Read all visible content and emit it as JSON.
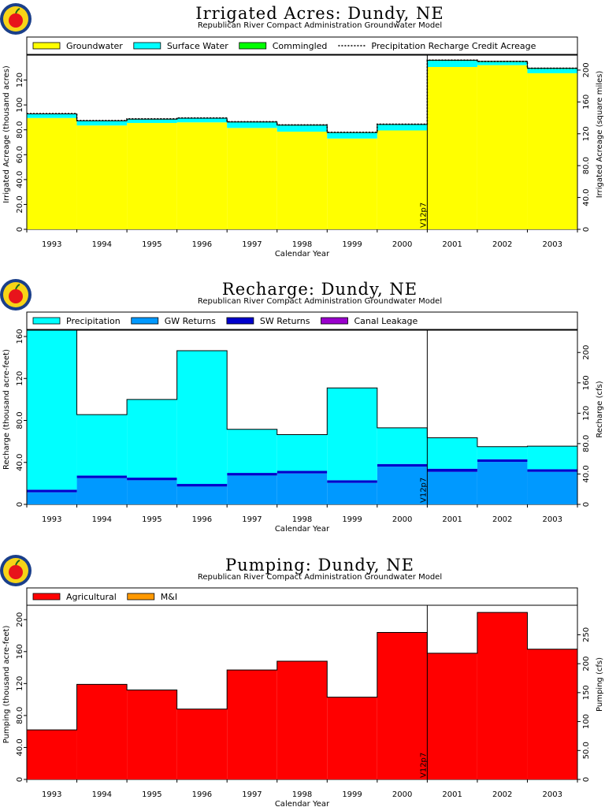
{
  "subtitle": "Republican River Compact Administration Groundwater Model",
  "marker_label": "V12p7",
  "chart_data": [
    {
      "type": "area",
      "title": "Irrigated Acres: Dundy, NE",
      "subtitle": "Republican River Compact Administration Groundwater Model",
      "xlabel": "Calendar Year",
      "ylabel": "Irrigated Acreage (thousand acres)",
      "ylabel_right": "Irrigated Acreage (square miles)",
      "categories": [
        "1993",
        "1994",
        "1995",
        "1996",
        "1997",
        "1998",
        "1999",
        "2000",
        "2001",
        "2002",
        "2003"
      ],
      "ylim": [
        0,
        140
      ],
      "yticks": [
        0,
        20,
        40,
        60,
        80,
        100,
        120
      ],
      "yticklabels": [
        "0",
        "20.0",
        "40.0",
        "60.0",
        "80.0",
        "100",
        "120"
      ],
      "ylim_right": [
        0,
        218.75
      ],
      "yticks_right": [
        0,
        40,
        80,
        120,
        160,
        200
      ],
      "yticklabels_right": [
        "0",
        "40.0",
        "80.0",
        "120",
        "160",
        "200"
      ],
      "stacked": true,
      "marker_after": "2000",
      "series": [
        {
          "name": "Groundwater",
          "color": "#ffff00",
          "values": [
            89.5,
            83.5,
            85.5,
            86.0,
            81.5,
            78.5,
            73.0,
            79.5,
            130.5,
            132.0,
            125.5
          ]
        },
        {
          "name": "Surface Water",
          "color": "#00ffff",
          "values": [
            3.0,
            3.5,
            2.8,
            3.0,
            4.5,
            5.0,
            4.5,
            4.5,
            5.0,
            2.5,
            3.5
          ]
        },
        {
          "name": "Commingled",
          "color": "#00ff00",
          "values": [
            0.3,
            0.3,
            0.3,
            0.3,
            0.3,
            0.3,
            0.3,
            0.3,
            0.5,
            0.5,
            0.5
          ]
        }
      ],
      "line_series": {
        "name": "Precipitation Recharge Credit Acreage",
        "values": [
          93.0,
          87.5,
          88.8,
          89.5,
          86.5,
          84.0,
          78.0,
          84.5,
          136.0,
          135.0,
          129.5
        ]
      },
      "legend": [
        "Groundwater",
        "Surface Water",
        "Commingled",
        "Precipitation Recharge Credit Acreage"
      ]
    },
    {
      "type": "area",
      "title": "Recharge: Dundy, NE",
      "subtitle": "Republican River Compact Administration Groundwater Model",
      "xlabel": "Calendar Year",
      "ylabel": "Recharge (thousand acre-feet)",
      "ylabel_right": "Recharge (cfs)",
      "categories": [
        "1993",
        "1994",
        "1995",
        "1996",
        "1997",
        "1998",
        "1999",
        "2000",
        "2001",
        "2002",
        "2003"
      ],
      "ylim": [
        0,
        166
      ],
      "yticks": [
        0,
        40,
        80,
        120,
        160
      ],
      "yticklabels": [
        "0",
        "40.0",
        "80.0",
        "120",
        "160"
      ],
      "ylim_right": [
        0,
        229.3
      ],
      "yticks_right": [
        0,
        40,
        80,
        120,
        160,
        200
      ],
      "yticklabels_right": [
        "0",
        "40.0",
        "80.0",
        "120",
        "160",
        "200"
      ],
      "stacked": true,
      "marker_after": "2000",
      "series": [
        {
          "name": "GW Returns",
          "color": "#0099ff",
          "values": [
            11.5,
            25.0,
            23.0,
            17.0,
            27.5,
            29.5,
            20.5,
            36.0,
            31.0,
            40.5,
            31.0
          ]
        },
        {
          "name": "SW Returns",
          "color": "#0000cc",
          "values": [
            2.5,
            2.5,
            2.5,
            2.5,
            2.5,
            2.5,
            2.5,
            2.5,
            3.0,
            2.5,
            2.5
          ]
        },
        {
          "name": "Canal Leakage",
          "color": "#9900cc",
          "values": [
            0,
            0,
            0,
            0,
            0,
            0,
            0,
            0,
            0,
            0,
            0
          ]
        },
        {
          "name": "Precipitation",
          "color": "#00ffff",
          "values": [
            152.0,
            58.0,
            74.5,
            127.0,
            41.5,
            34.5,
            88.0,
            34.5,
            29.5,
            12.0,
            22.0
          ]
        }
      ],
      "legend": [
        "Precipitation",
        "GW Returns",
        "SW Returns",
        "Canal Leakage"
      ]
    },
    {
      "type": "area",
      "title": "Pumping: Dundy, NE",
      "subtitle": "Republican River Compact Administration Groundwater Model",
      "xlabel": "Calendar Year",
      "ylabel": "Pumping (thousand acre-feet)",
      "ylabel_right": "Pumping (cfs)",
      "categories": [
        "1993",
        "1994",
        "1995",
        "1996",
        "1997",
        "1998",
        "1999",
        "2000",
        "2001",
        "2002",
        "2003"
      ],
      "ylim": [
        0,
        218
      ],
      "yticks": [
        0,
        40,
        80,
        120,
        160,
        200
      ],
      "yticklabels": [
        "0",
        "40.0",
        "80.0",
        "120",
        "160",
        "200"
      ],
      "ylim_right": [
        0,
        301
      ],
      "yticks_right": [
        0,
        50,
        100,
        150,
        200,
        250
      ],
      "yticklabels_right": [
        "0",
        "50.0",
        "100",
        "150",
        "200",
        "250"
      ],
      "stacked": true,
      "marker_after": "2000",
      "series": [
        {
          "name": "Agricultural",
          "color": "#ff0000",
          "values": [
            62,
            119,
            112,
            88,
            137,
            148,
            103,
            184,
            158,
            209,
            163
          ]
        },
        {
          "name": "M&I",
          "color": "#ff9900",
          "values": [
            0,
            0,
            0,
            0,
            0,
            0,
            0,
            0,
            0,
            0,
            0
          ]
        }
      ],
      "legend": [
        "Agricultural",
        "M&I"
      ]
    }
  ]
}
